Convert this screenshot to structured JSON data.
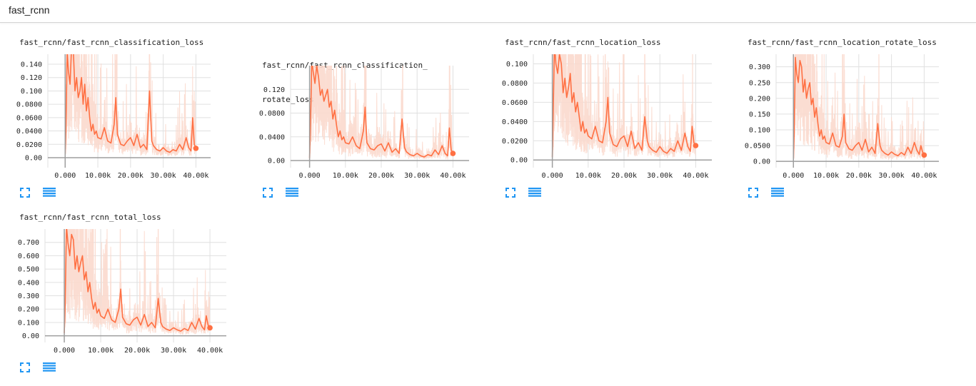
{
  "section": {
    "title": "fast_rcnn"
  },
  "colors": {
    "accent": "#ff7043",
    "accent_light": "#fbd9cd",
    "axis": "#9e9e9e",
    "grid": "#e0e0e0",
    "icon": "#2196f3"
  },
  "icons": {
    "expand": "fullscreen-icon",
    "data": "list-icon"
  },
  "chart_data": [
    {
      "type": "line",
      "title": "fast_rcnn/fast_rcnn_classification_loss",
      "x_ticks": [
        0,
        10000,
        20000,
        30000,
        40000
      ],
      "x_tick_labels": [
        "0.000",
        "10.00k",
        "20.00k",
        "30.00k",
        "40.00k"
      ],
      "y_ticks": [
        0,
        0.02,
        0.04,
        0.06,
        0.08,
        0.1,
        0.12,
        0.14
      ],
      "y_tick_labels": [
        "0.00",
        "0.0200",
        "0.0400",
        "0.0600",
        "0.0800",
        "0.100",
        "0.120",
        "0.140"
      ],
      "xlim": [
        -5300,
        44500
      ],
      "ylim": [
        -0.015,
        0.155
      ],
      "series": [
        {
          "x": [
            0,
            200,
            400,
            600,
            1000,
            1500,
            2000,
            2500,
            3000,
            3500,
            4000,
            4500,
            5000,
            5500,
            6000,
            6500,
            7000,
            7500,
            8000,
            8500,
            9000,
            9500,
            10000,
            11000,
            12000,
            13000,
            14000,
            15000,
            15500,
            16000,
            17000,
            18000,
            19000,
            20000,
            21000,
            22000,
            23000,
            24000,
            25000,
            25800,
            26500,
            27000,
            28000,
            29000,
            30000,
            31000,
            32000,
            33000,
            34000,
            35000,
            36000,
            37000,
            37800,
            38500,
            39000,
            39500,
            40000
          ],
          "y": [
            0.005,
            0.04,
            0.09,
            0.16,
            0.13,
            0.11,
            0.17,
            0.16,
            0.1,
            0.12,
            0.09,
            0.1,
            0.12,
            0.08,
            0.11,
            0.07,
            0.09,
            0.06,
            0.04,
            0.05,
            0.035,
            0.04,
            0.03,
            0.028,
            0.045,
            0.025,
            0.022,
            0.05,
            0.09,
            0.035,
            0.02,
            0.018,
            0.025,
            0.03,
            0.018,
            0.035,
            0.015,
            0.02,
            0.012,
            0.1,
            0.025,
            0.018,
            0.012,
            0.01,
            0.015,
            0.01,
            0.008,
            0.012,
            0.01,
            0.02,
            0.012,
            0.03,
            0.015,
            0.01,
            0.06,
            0.02,
            0.014
          ]
        }
      ]
    },
    {
      "type": "line",
      "title": "fast_rcnn/fast_rcnn_classification_rotate_loss",
      "title_lines": [
        "fast_rcnn/fast_rcnn_classification_",
        "rotate_loss"
      ],
      "x_ticks": [
        0,
        10000,
        20000,
        30000,
        40000
      ],
      "x_tick_labels": [
        "0.000",
        "10.00k",
        "20.00k",
        "30.00k",
        "40.00k"
      ],
      "y_ticks": [
        0,
        0.04,
        0.08,
        0.12
      ],
      "y_tick_labels": [
        "0.00",
        "0.0400",
        "0.0800",
        "0.120"
      ],
      "xlim": [
        -5300,
        44500
      ],
      "ylim": [
        -0.012,
        0.16
      ],
      "series": [
        {
          "x": [
            0,
            200,
            400,
            600,
            1000,
            1500,
            2000,
            2500,
            3000,
            3500,
            4000,
            4500,
            5000,
            5500,
            6000,
            6500,
            7000,
            7500,
            8000,
            8500,
            9000,
            9500,
            10000,
            11000,
            12000,
            13000,
            14000,
            15000,
            15500,
            16000,
            17000,
            18000,
            19000,
            20000,
            21000,
            22000,
            23000,
            24000,
            25000,
            25800,
            26500,
            27000,
            28000,
            29000,
            30000,
            31000,
            32000,
            33000,
            34000,
            35000,
            36000,
            37000,
            37800,
            38500,
            39000,
            39500,
            40000
          ],
          "y": [
            0.004,
            0.05,
            0.1,
            0.17,
            0.15,
            0.13,
            0.16,
            0.14,
            0.11,
            0.12,
            0.1,
            0.11,
            0.12,
            0.09,
            0.1,
            0.07,
            0.085,
            0.06,
            0.04,
            0.05,
            0.035,
            0.04,
            0.03,
            0.028,
            0.04,
            0.025,
            0.02,
            0.05,
            0.09,
            0.03,
            0.02,
            0.018,
            0.025,
            0.028,
            0.016,
            0.03,
            0.014,
            0.02,
            0.012,
            0.07,
            0.022,
            0.015,
            0.01,
            0.008,
            0.012,
            0.008,
            0.006,
            0.01,
            0.008,
            0.018,
            0.01,
            0.025,
            0.012,
            0.008,
            0.055,
            0.018,
            0.012
          ]
        }
      ]
    },
    {
      "type": "line",
      "title": "fast_rcnn/fast_rcnn_location_loss",
      "x_ticks": [
        0,
        10000,
        20000,
        30000,
        40000
      ],
      "x_tick_labels": [
        "0.000",
        "10.00k",
        "20.00k",
        "30.00k",
        "40.00k"
      ],
      "y_ticks": [
        0,
        0.02,
        0.04,
        0.06,
        0.08,
        0.1
      ],
      "y_tick_labels": [
        "0.00",
        "0.0200",
        "0.0400",
        "0.0600",
        "0.0800",
        "0.100"
      ],
      "xlim": [
        -5300,
        44500
      ],
      "ylim": [
        -0.008,
        0.11
      ],
      "series": [
        {
          "x": [
            0,
            200,
            400,
            600,
            1000,
            1500,
            2000,
            2500,
            3000,
            3500,
            4000,
            4500,
            5000,
            5500,
            6000,
            6500,
            7000,
            7500,
            8000,
            8500,
            9000,
            9500,
            10000,
            11000,
            12000,
            13000,
            14000,
            15000,
            15500,
            16000,
            17000,
            18000,
            19000,
            20000,
            21000,
            22000,
            23000,
            24000,
            25000,
            25800,
            26500,
            27000,
            28000,
            29000,
            30000,
            31000,
            32000,
            33000,
            34000,
            35000,
            36000,
            37000,
            37800,
            38500,
            39000,
            39500,
            40000
          ],
          "y": [
            0.003,
            0.04,
            0.08,
            0.12,
            0.1,
            0.09,
            0.11,
            0.1,
            0.07,
            0.085,
            0.065,
            0.075,
            0.09,
            0.06,
            0.07,
            0.05,
            0.06,
            0.045,
            0.03,
            0.04,
            0.028,
            0.032,
            0.025,
            0.022,
            0.035,
            0.02,
            0.018,
            0.04,
            0.065,
            0.028,
            0.016,
            0.014,
            0.022,
            0.025,
            0.014,
            0.03,
            0.012,
            0.018,
            0.01,
            0.045,
            0.02,
            0.014,
            0.01,
            0.008,
            0.014,
            0.009,
            0.007,
            0.012,
            0.009,
            0.02,
            0.01,
            0.028,
            0.014,
            0.009,
            0.035,
            0.018,
            0.015
          ]
        }
      ]
    },
    {
      "type": "line",
      "title": "fast_rcnn/fast_rcnn_location_rotate_loss",
      "x_ticks": [
        0,
        10000,
        20000,
        30000,
        40000
      ],
      "x_tick_labels": [
        "0.000",
        "10.00k",
        "20.00k",
        "30.00k",
        "40.00k"
      ],
      "y_ticks": [
        0,
        0.05,
        0.1,
        0.15,
        0.2,
        0.25,
        0.3
      ],
      "y_tick_labels": [
        "0.00",
        "0.0500",
        "0.100",
        "0.150",
        "0.200",
        "0.250",
        "0.300"
      ],
      "xlim": [
        -5300,
        44500
      ],
      "ylim": [
        -0.02,
        0.34
      ],
      "series": [
        {
          "x": [
            0,
            200,
            400,
            600,
            1000,
            1500,
            2000,
            2500,
            3000,
            3500,
            4000,
            4500,
            5000,
            5500,
            6000,
            6500,
            7000,
            7500,
            8000,
            8500,
            9000,
            9500,
            10000,
            11000,
            12000,
            13000,
            14000,
            15000,
            15500,
            16000,
            17000,
            18000,
            19000,
            20000,
            21000,
            22000,
            23000,
            24000,
            25000,
            25800,
            26500,
            27000,
            28000,
            29000,
            30000,
            31000,
            32000,
            33000,
            34000,
            35000,
            36000,
            37000,
            37800,
            38500,
            39000,
            39500,
            40000
          ],
          "y": [
            0.008,
            0.08,
            0.2,
            0.33,
            0.28,
            0.25,
            0.32,
            0.3,
            0.22,
            0.26,
            0.2,
            0.23,
            0.25,
            0.18,
            0.2,
            0.14,
            0.17,
            0.12,
            0.08,
            0.1,
            0.07,
            0.08,
            0.06,
            0.055,
            0.09,
            0.05,
            0.045,
            0.08,
            0.15,
            0.06,
            0.04,
            0.035,
            0.05,
            0.06,
            0.035,
            0.07,
            0.03,
            0.045,
            0.025,
            0.12,
            0.05,
            0.035,
            0.025,
            0.02,
            0.03,
            0.022,
            0.018,
            0.028,
            0.02,
            0.045,
            0.025,
            0.06,
            0.035,
            0.022,
            0.05,
            0.03,
            0.02
          ]
        }
      ]
    },
    {
      "type": "line",
      "title": "fast_rcnn/fast_rcnn_total_loss",
      "x_ticks": [
        0,
        10000,
        20000,
        30000,
        40000
      ],
      "x_tick_labels": [
        "0.000",
        "10.00k",
        "20.00k",
        "30.00k",
        "40.00k"
      ],
      "y_ticks": [
        0,
        0.1,
        0.2,
        0.3,
        0.4,
        0.5,
        0.6,
        0.7
      ],
      "y_tick_labels": [
        "0.00",
        "0.100",
        "0.200",
        "0.300",
        "0.400",
        "0.500",
        "0.600",
        "0.700"
      ],
      "xlim": [
        -5300,
        44500
      ],
      "ylim": [
        -0.05,
        0.8
      ],
      "series": [
        {
          "x": [
            0,
            200,
            400,
            600,
            1000,
            1500,
            2000,
            2500,
            3000,
            3500,
            4000,
            4500,
            5000,
            5500,
            6000,
            6500,
            7000,
            7500,
            8000,
            8500,
            9000,
            9500,
            10000,
            11000,
            12000,
            13000,
            14000,
            15000,
            15500,
            16000,
            17000,
            18000,
            19000,
            20000,
            21000,
            22000,
            23000,
            24000,
            25000,
            25800,
            26500,
            27000,
            28000,
            29000,
            30000,
            31000,
            32000,
            33000,
            34000,
            35000,
            36000,
            37000,
            37800,
            38500,
            39000,
            39500,
            40000
          ],
          "y": [
            0.02,
            0.2,
            0.5,
            0.82,
            0.7,
            0.6,
            0.76,
            0.72,
            0.5,
            0.6,
            0.48,
            0.55,
            0.6,
            0.42,
            0.48,
            0.33,
            0.4,
            0.28,
            0.2,
            0.25,
            0.17,
            0.2,
            0.15,
            0.13,
            0.2,
            0.12,
            0.1,
            0.2,
            0.35,
            0.14,
            0.09,
            0.08,
            0.12,
            0.14,
            0.08,
            0.16,
            0.07,
            0.1,
            0.06,
            0.28,
            0.1,
            0.07,
            0.05,
            0.04,
            0.06,
            0.045,
            0.035,
            0.055,
            0.04,
            0.1,
            0.05,
            0.13,
            0.07,
            0.045,
            0.15,
            0.08,
            0.06
          ]
        }
      ]
    }
  ]
}
